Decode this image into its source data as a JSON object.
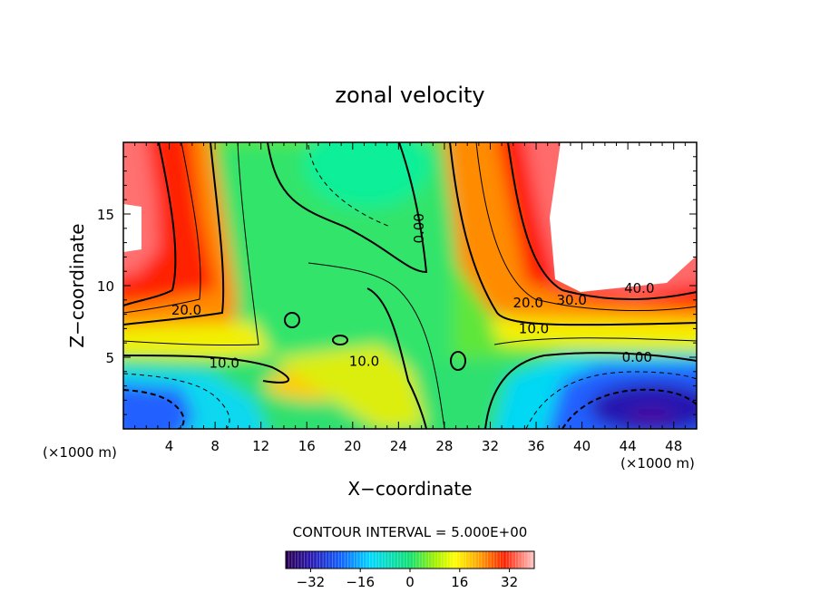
{
  "chart_data": {
    "type": "heatmap",
    "title": "zonal velocity",
    "xlabel": "X−coordinate",
    "ylabel": "Z−coordinate",
    "x_unit_left": "(×1000 m)",
    "x_unit_right": "(×1000 m)",
    "xlim": [
      0,
      50
    ],
    "ylim": [
      0,
      20
    ],
    "x_ticks": [
      4,
      8,
      12,
      16,
      20,
      24,
      28,
      32,
      36,
      40,
      44,
      48
    ],
    "y_ticks": [
      5,
      10,
      15
    ],
    "contour_interval_text": "CONTOUR INTERVAL = 5.000E+00",
    "colorbar": {
      "range": [
        -40,
        40
      ],
      "ticks": [
        -32,
        -16,
        0,
        16,
        32
      ],
      "tick_labels": [
        "−32",
        "−16",
        "0",
        "16",
        "32"
      ]
    },
    "contour_labels": [
      {
        "text": "20.0",
        "x": 5.5,
        "y": 8.3
      },
      {
        "text": "10.0",
        "x": 8.8,
        "y": 4.6
      },
      {
        "text": "10.0",
        "x": 21.0,
        "y": 4.7
      },
      {
        "text": "0.00",
        "x": 25.8,
        "y": 14.0
      },
      {
        "text": "20.0",
        "x": 35.3,
        "y": 8.8
      },
      {
        "text": "30.0",
        "x": 39.1,
        "y": 9.0
      },
      {
        "text": "40.0",
        "x": 45.0,
        "y": 9.8
      },
      {
        "text": "10.0",
        "x": 35.8,
        "y": 7.0
      },
      {
        "text": "0.00",
        "x": 44.8,
        "y": 5.0
      }
    ]
  }
}
